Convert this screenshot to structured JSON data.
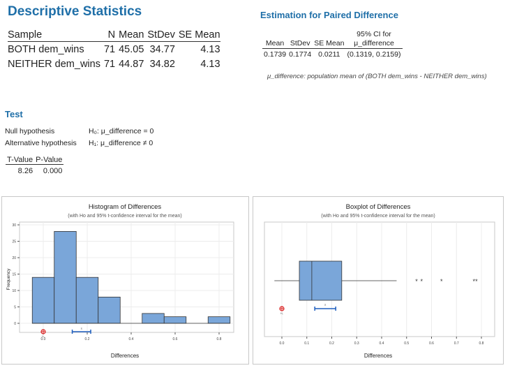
{
  "descriptive": {
    "title": "Descriptive Statistics",
    "headers": [
      "Sample",
      "N",
      "Mean",
      "StDev",
      "SE Mean"
    ],
    "rows": [
      [
        "BOTH dem_wins",
        "71",
        "45.05",
        "34.77",
        "4.13"
      ],
      [
        "NEITHER dem_wins",
        "71",
        "44.87",
        "34.82",
        "4.13"
      ]
    ]
  },
  "estimation": {
    "title": "Estimation for Paired Difference",
    "ci_header_line1": "95% CI for",
    "headers": [
      "Mean",
      "StDev",
      "SE Mean",
      "μ_difference"
    ],
    "row": [
      "0.1739",
      "0.1774",
      "0.0211",
      "(0.1319, 0.2159)"
    ],
    "note": "μ_difference: population mean of (BOTH dem_wins - NEITHER dem_wins)"
  },
  "test": {
    "title": "Test",
    "null_label": "Null hypothesis",
    "null_value": "H₀: μ_difference = 0",
    "alt_label": "Alternative hypothesis",
    "alt_value": "H₁: μ_difference ≠ 0",
    "headers": [
      "T-Value",
      "P-Value"
    ],
    "values": [
      "8.26",
      "0.000"
    ]
  },
  "colors": {
    "title_blue": "#1f6fa8",
    "bar_fill": "#7aa6d9",
    "bar_stroke": "#333333",
    "ci_blue": "#1f5fbf",
    "h0_red": "#d92020"
  },
  "chart_data": [
    {
      "type": "bar",
      "title": "Histogram of Differences",
      "subtitle": "(with Ho and 95% t-confidence interval for the mean)",
      "xlabel": "Differences",
      "ylabel": "Frequency",
      "bin_width": 0.1,
      "bin_starts": [
        -0.05,
        0.05,
        0.15,
        0.25,
        0.35,
        0.45,
        0.55,
        0.65,
        0.75
      ],
      "values": [
        14,
        28,
        14,
        8,
        0,
        3,
        2,
        0,
        2
      ],
      "xlim": [
        -0.1,
        0.85
      ],
      "ylim": [
        0,
        30
      ],
      "x_ticks": [
        "0.0",
        "0.2",
        "0.4",
        "0.6",
        "0.8"
      ],
      "x_tick_values": [
        0,
        0.2,
        0.4,
        0.6,
        0.8
      ],
      "y_ticks": [
        "0",
        "5",
        "10",
        "15",
        "20",
        "25",
        "30"
      ],
      "y_tick_values": [
        0,
        5,
        10,
        15,
        20,
        25,
        30
      ],
      "h0_label": "H₀",
      "h0_value": 0,
      "mean_label": "X̄",
      "mean": 0.1739,
      "ci": [
        0.1319,
        0.2159
      ]
    },
    {
      "type": "boxplot",
      "title": "Boxplot of Differences",
      "subtitle": "(with Ho and 95% t-confidence interval for the mean)",
      "xlabel": "Differences",
      "xlim": [
        -0.05,
        0.85
      ],
      "x_ticks": [
        "0.0",
        "0.1",
        "0.2",
        "0.3",
        "0.4",
        "0.5",
        "0.6",
        "0.7",
        "0.8"
      ],
      "x_tick_values": [
        0,
        0.1,
        0.2,
        0.3,
        0.4,
        0.5,
        0.6,
        0.7,
        0.8
      ],
      "whisker_low": -0.03,
      "q1": 0.07,
      "median": 0.12,
      "q3": 0.24,
      "whisker_high": 0.46,
      "outliers": [
        0.54,
        0.56,
        0.64,
        0.77,
        0.78
      ],
      "h0_label": "H₀",
      "h0_value": 0,
      "mean_label": "X̄",
      "mean": 0.1739,
      "ci": [
        0.1319,
        0.2159
      ]
    }
  ]
}
